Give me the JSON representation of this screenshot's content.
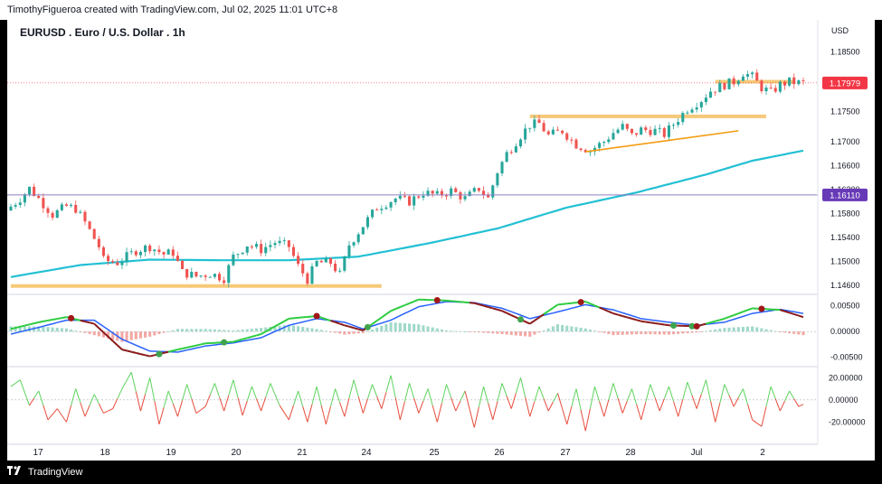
{
  "header": {
    "caption": "TimothyFigueroa created with TradingView.com, Jul 02, 2025 11:01 UTC+8"
  },
  "footer": {
    "brand": "TradingView",
    "logo_icon": "tradingview-logo-icon"
  },
  "colors": {
    "bull": "#26a69a",
    "bear": "#ef5350",
    "ma": "#22c0d4",
    "support": "#f6c979",
    "trendline": "#f39c12",
    "hline": "#8e7cc3",
    "price_badge": "#f23645",
    "level_badge": "#673ab7",
    "macd_fast": "#2ecc40",
    "macd_slow": "#2962ff",
    "osc_up": "#5dd35d",
    "osc_down": "#e74c3c"
  },
  "chart_data": {
    "type": "candlestick",
    "title": "EURUSD . Euro / U.S. Dollar . 1h",
    "currency": "USD",
    "x_labels": [
      "17",
      "18",
      "19",
      "20",
      "21",
      "24",
      "25",
      "26",
      "27",
      "28",
      "Jul",
      "2"
    ],
    "price_axis": {
      "ticks": [
        1.185,
        1.175,
        1.17,
        1.166,
        1.162,
        1.158,
        1.154,
        1.15,
        1.146
      ],
      "tick_labels": [
        "1.18500",
        "1.17500",
        "1.17000",
        "1.16600",
        "1.16200",
        "1.15800",
        "1.15400",
        "1.15000",
        "1.14600"
      ],
      "range": [
        1.1445,
        1.187
      ],
      "last_price": 1.17979,
      "last_price_label": "1.17979",
      "level": 1.1611,
      "level_label": "1.16110"
    },
    "price_path": [
      [
        0,
        1.1585
      ],
      [
        3,
        1.1605
      ],
      [
        5,
        1.1622
      ],
      [
        7,
        1.1605
      ],
      [
        10,
        1.1578
      ],
      [
        13,
        1.1592
      ],
      [
        15,
        1.1588
      ],
      [
        17,
        1.1565
      ],
      [
        20,
        1.1525
      ],
      [
        21,
        1.1502
      ],
      [
        24,
        1.1498
      ],
      [
        28,
        1.1518
      ],
      [
        31,
        1.1525
      ],
      [
        34,
        1.1512
      ],
      [
        36,
        1.1515
      ],
      [
        38,
        1.1482
      ],
      [
        41,
        1.1475
      ],
      [
        44,
        1.148
      ],
      [
        47,
        1.1472
      ],
      [
        49,
        1.1508
      ],
      [
        52,
        1.1528
      ],
      [
        55,
        1.152
      ],
      [
        58,
        1.1532
      ],
      [
        61,
        1.1525
      ],
      [
        63,
        1.1492
      ],
      [
        65,
        1.147
      ],
      [
        67,
        1.1498
      ],
      [
        70,
        1.1498
      ],
      [
        72,
        1.1478
      ],
      [
        74,
        1.1528
      ],
      [
        77,
        1.156
      ],
      [
        80,
        1.159
      ],
      [
        84,
        1.1605
      ],
      [
        87,
        1.16
      ],
      [
        90,
        1.1615
      ],
      [
        93,
        1.161
      ],
      [
        96,
        1.1618
      ],
      [
        99,
        1.1605
      ],
      [
        102,
        1.1622
      ],
      [
        104,
        1.1605
      ],
      [
        106,
        1.165
      ],
      [
        108,
        1.168
      ],
      [
        111,
        1.171
      ],
      [
        113,
        1.1728
      ],
      [
        115,
        1.173
      ],
      [
        117,
        1.171
      ],
      [
        120,
        1.1718
      ],
      [
        123,
        1.1695
      ],
      [
        126,
        1.1685
      ],
      [
        129,
        1.17
      ],
      [
        131,
        1.1715
      ],
      [
        133,
        1.1725
      ],
      [
        135,
        1.171
      ],
      [
        137,
        1.172
      ],
      [
        140,
        1.1718
      ],
      [
        142,
        1.1712
      ],
      [
        145,
        1.1738
      ],
      [
        147,
        1.1755
      ],
      [
        150,
        1.177
      ],
      [
        152,
        1.1785
      ],
      [
        155,
        1.1795
      ],
      [
        157,
        1.18
      ],
      [
        159,
        1.1815
      ],
      [
        161,
        1.1808
      ],
      [
        163,
        1.179
      ],
      [
        165,
        1.1782
      ],
      [
        167,
        1.1795
      ],
      [
        169,
        1.18
      ],
      [
        171,
        1.1798
      ]
    ],
    "moving_average": [
      [
        0,
        1.1474
      ],
      [
        15,
        1.1494
      ],
      [
        30,
        1.1503
      ],
      [
        45,
        1.1502
      ],
      [
        60,
        1.1502
      ],
      [
        75,
        1.1508
      ],
      [
        90,
        1.153
      ],
      [
        105,
        1.1555
      ],
      [
        120,
        1.159
      ],
      [
        135,
        1.1615
      ],
      [
        150,
        1.1645
      ],
      [
        160,
        1.1668
      ],
      [
        171,
        1.1685
      ]
    ],
    "support_lines": [
      {
        "x": [
          0,
          80
        ],
        "y": 1.1459
      },
      {
        "x": [
          112,
          163
        ],
        "y": 1.1742
      },
      {
        "x": [
          152,
          169
        ],
        "y": 1.18
      }
    ],
    "trendline": {
      "x": [
        124,
        157
      ],
      "y": [
        1.1683,
        1.1718
      ]
    },
    "macd": {
      "ticks": [
        0.005,
        0.0,
        -0.005
      ],
      "tick_labels": [
        "0.00500",
        "0.00000",
        "-0.00500"
      ],
      "range": [
        -0.0068,
        0.0072
      ],
      "fast": [
        [
          0,
          0.0005
        ],
        [
          6,
          0.0018
        ],
        [
          12,
          0.0028
        ],
        [
          18,
          0.0015
        ],
        [
          24,
          -0.0035
        ],
        [
          30,
          -0.0048
        ],
        [
          36,
          -0.0035
        ],
        [
          42,
          -0.0023
        ],
        [
          48,
          -0.002
        ],
        [
          54,
          -0.0005
        ],
        [
          60,
          0.0025
        ],
        [
          66,
          0.003
        ],
        [
          72,
          0.0012
        ],
        [
          76,
          0.0002
        ],
        [
          82,
          0.004
        ],
        [
          88,
          0.0062
        ],
        [
          94,
          0.006
        ],
        [
          100,
          0.0055
        ],
        [
          106,
          0.004
        ],
        [
          112,
          0.0015
        ],
        [
          118,
          0.0052
        ],
        [
          124,
          0.0058
        ],
        [
          130,
          0.0035
        ],
        [
          136,
          0.002
        ],
        [
          142,
          0.0012
        ],
        [
          148,
          0.001
        ],
        [
          154,
          0.0025
        ],
        [
          160,
          0.0045
        ],
        [
          166,
          0.0042
        ],
        [
          171,
          0.0028
        ]
      ],
      "slow": [
        [
          0,
          -0.0005
        ],
        [
          6,
          0.0008
        ],
        [
          12,
          0.0022
        ],
        [
          18,
          0.0022
        ],
        [
          24,
          -0.0015
        ],
        [
          30,
          -0.0038
        ],
        [
          36,
          -0.004
        ],
        [
          42,
          -0.0028
        ],
        [
          48,
          -0.0022
        ],
        [
          54,
          -0.0012
        ],
        [
          60,
          0.0012
        ],
        [
          66,
          0.0025
        ],
        [
          72,
          0.0018
        ],
        [
          76,
          0.0005
        ],
        [
          82,
          0.0022
        ],
        [
          88,
          0.0048
        ],
        [
          94,
          0.0058
        ],
        [
          100,
          0.0056
        ],
        [
          106,
          0.0045
        ],
        [
          112,
          0.0025
        ],
        [
          118,
          0.0038
        ],
        [
          124,
          0.0052
        ],
        [
          130,
          0.0042
        ],
        [
          136,
          0.0025
        ],
        [
          142,
          0.0018
        ],
        [
          148,
          0.0012
        ],
        [
          154,
          0.0018
        ],
        [
          160,
          0.0035
        ],
        [
          166,
          0.0043
        ],
        [
          171,
          0.0035
        ]
      ],
      "cross_up": [
        32,
        46,
        77,
        110,
        143,
        147
      ],
      "cross_down": [
        13,
        66,
        92,
        123,
        162,
        148
      ]
    },
    "oscillator": {
      "ticks": [
        20.0,
        0.0,
        -20.0
      ],
      "tick_labels": [
        "20.00000",
        "0.00000",
        "-20.00000"
      ],
      "range": [
        -36,
        30
      ],
      "values": [
        [
          0,
          12
        ],
        [
          2,
          18
        ],
        [
          4,
          -5
        ],
        [
          6,
          8
        ],
        [
          8,
          -18
        ],
        [
          10,
          -8
        ],
        [
          12,
          -20
        ],
        [
          14,
          10
        ],
        [
          16,
          -15
        ],
        [
          18,
          5
        ],
        [
          20,
          -12
        ],
        [
          22,
          -8
        ],
        [
          24,
          10
        ],
        [
          26,
          25
        ],
        [
          28,
          -10
        ],
        [
          30,
          20
        ],
        [
          32,
          -22
        ],
        [
          34,
          8
        ],
        [
          36,
          -15
        ],
        [
          38,
          14
        ],
        [
          40,
          -12
        ],
        [
          42,
          -6
        ],
        [
          44,
          15
        ],
        [
          46,
          -10
        ],
        [
          48,
          18
        ],
        [
          50,
          -14
        ],
        [
          52,
          12
        ],
        [
          54,
          -10
        ],
        [
          56,
          15
        ],
        [
          58,
          -5
        ],
        [
          60,
          -18
        ],
        [
          62,
          8
        ],
        [
          64,
          -20
        ],
        [
          66,
          12
        ],
        [
          68,
          -22
        ],
        [
          70,
          10
        ],
        [
          72,
          -15
        ],
        [
          74,
          18
        ],
        [
          76,
          -12
        ],
        [
          78,
          14
        ],
        [
          80,
          -8
        ],
        [
          82,
          22
        ],
        [
          84,
          -18
        ],
        [
          86,
          15
        ],
        [
          88,
          -12
        ],
        [
          90,
          10
        ],
        [
          92,
          -20
        ],
        [
          94,
          14
        ],
        [
          96,
          -10
        ],
        [
          98,
          8
        ],
        [
          100,
          -25
        ],
        [
          102,
          12
        ],
        [
          104,
          -18
        ],
        [
          106,
          15
        ],
        [
          108,
          -8
        ],
        [
          110,
          20
        ],
        [
          112,
          -15
        ],
        [
          114,
          12
        ],
        [
          116,
          -10
        ],
        [
          118,
          6
        ],
        [
          120,
          -22
        ],
        [
          122,
          10
        ],
        [
          124,
          -28
        ],
        [
          126,
          12
        ],
        [
          128,
          -15
        ],
        [
          130,
          15
        ],
        [
          132,
          -12
        ],
        [
          134,
          10
        ],
        [
          136,
          -18
        ],
        [
          138,
          14
        ],
        [
          140,
          -10
        ],
        [
          142,
          12
        ],
        [
          144,
          -15
        ],
        [
          146,
          16
        ],
        [
          148,
          -8
        ],
        [
          150,
          18
        ],
        [
          152,
          -20
        ],
        [
          154,
          14
        ],
        [
          156,
          -6
        ],
        [
          158,
          10
        ],
        [
          160,
          -18
        ],
        [
          162,
          -24
        ],
        [
          164,
          12
        ],
        [
          166,
          -10
        ],
        [
          168,
          8
        ],
        [
          170,
          -6
        ],
        [
          171,
          -4
        ]
      ]
    }
  }
}
